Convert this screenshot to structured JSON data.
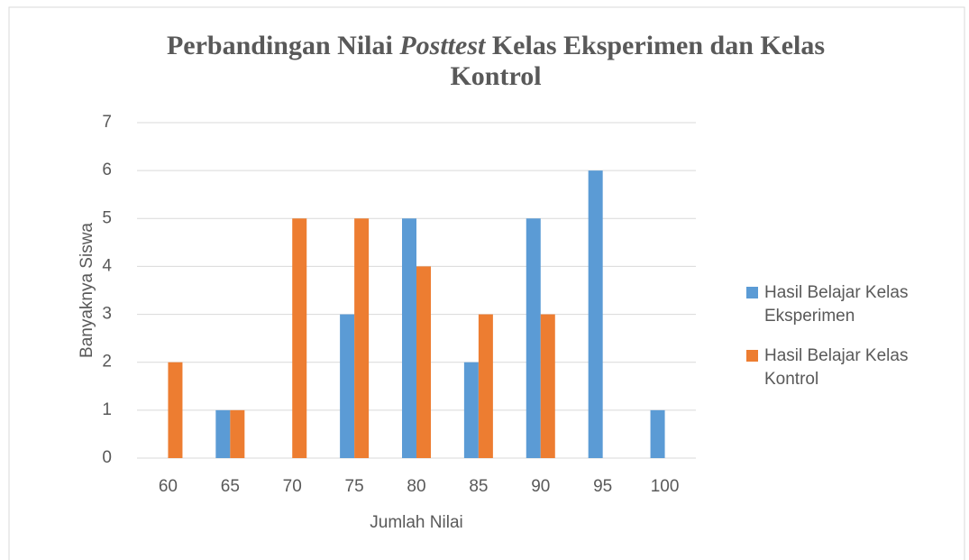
{
  "chart_data": {
    "type": "bar",
    "title": [
      {
        "text": "Perbandingan Nilai"
      },
      {
        "text": "Posttest",
        "italic": true
      },
      {
        "text": "Kelas Eksperimen dan Kelas Kontrol"
      }
    ],
    "x_label": "Jumlah Nilai",
    "y_label": "Banyaknya Siswa",
    "categories": [
      "60",
      "65",
      "70",
      "75",
      "80",
      "85",
      "90",
      "95",
      "100"
    ],
    "series": [
      {
        "name": "Hasil Belajar Kelas Eksperimen",
        "color": "#5b9bd5",
        "values": [
          0,
          1,
          0,
          3,
          5,
          2,
          5,
          6,
          1
        ]
      },
      {
        "name": "Hasil Belajar Kelas Kontrol",
        "color": "#ed7d31",
        "values": [
          2,
          1,
          5,
          5,
          4,
          3,
          3,
          0,
          0
        ]
      }
    ],
    "ylim": [
      0,
      7
    ],
    "yticks": [
      0,
      1,
      2,
      3,
      4,
      5,
      6,
      7
    ],
    "grid": true,
    "legend": "right"
  }
}
